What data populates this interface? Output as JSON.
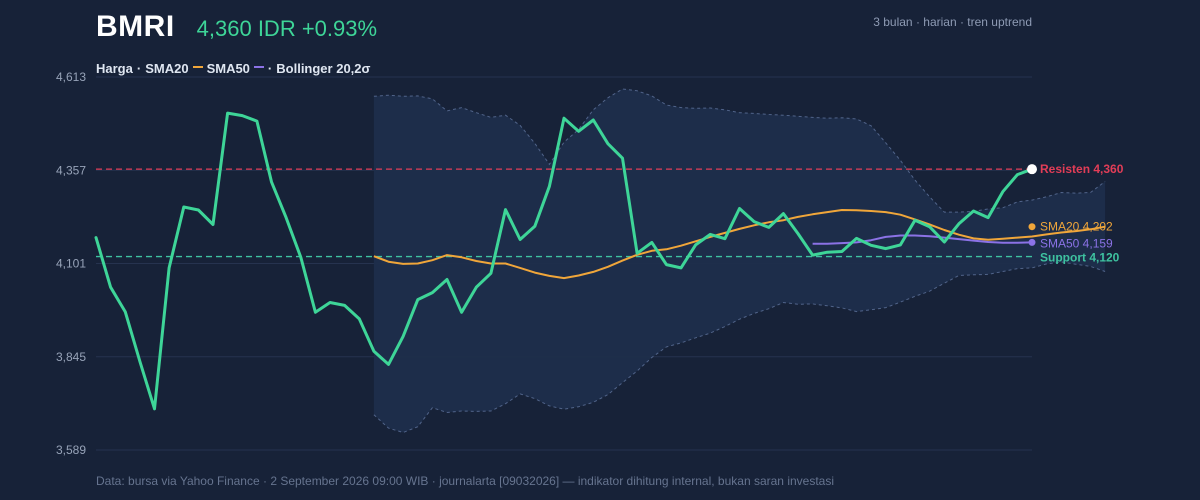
{
  "header": {
    "ticker": "BMRI",
    "price_change": "4,360 IDR +0.93%",
    "subtitle": "3 bulan · harian · tren uptrend"
  },
  "legend": {
    "price": "Harga",
    "sep1": "·",
    "sma20": "SMA20",
    "sma50": "SMA50",
    "sep2": "·",
    "bollinger": "Bollinger 20,2σ"
  },
  "footer": "Data: bursa via Yahoo Finance · 2 September 2026 09:00 WIB · journalarta [09032026] — indikator dihitung internal, bukan saran investasi",
  "colors": {
    "background": "#172238",
    "price": "#3ed598",
    "sma20": "#f0a63a",
    "sma50": "#8b72e6",
    "band_fill": "#1e2e4b",
    "band_edge": "#51648a",
    "resistance": "#e23d57",
    "support": "#3ec2a0",
    "grid": "#26334f"
  },
  "chart_data": {
    "type": "line",
    "title": "BMRI",
    "xlabel": "",
    "ylabel": "",
    "ylim": [
      3589,
      4613
    ],
    "y_ticks": [
      "4,613",
      "4,357",
      "4,101",
      "3,845",
      "3,589"
    ],
    "y_tick_values": [
      4613,
      4357,
      4101,
      3845,
      3589
    ],
    "n_points": 65,
    "series": [
      {
        "name": "Harga",
        "start_index": 0,
        "values": [
          4172,
          4036,
          3968,
          3832,
          3702,
          4089,
          4256,
          4248,
          4208,
          4514,
          4507,
          4492,
          4325,
          4227,
          4118,
          3967,
          3994,
          3986,
          3949,
          3860,
          3824,
          3901,
          4002,
          4021,
          4057,
          3967,
          4036,
          4074,
          4249,
          4167,
          4203,
          4313,
          4500,
          4464,
          4495,
          4430,
          4390,
          4129,
          4159,
          4098,
          4089,
          4152,
          4181,
          4169,
          4252,
          4216,
          4200,
          4238,
          4183,
          4124,
          4132,
          4134,
          4170,
          4151,
          4142,
          4152,
          4220,
          4202,
          4160,
          4210,
          4245,
          4227,
          4298,
          4345,
          4360
        ]
      },
      {
        "name": "SMA20",
        "start_index": 19,
        "values": [
          4121,
          4106,
          4100,
          4101,
          4110,
          4124,
          4118,
          4108,
          4101,
          4101,
          4089,
          4076,
          4067,
          4061,
          4068,
          4078,
          4092,
          4109,
          4125,
          4136,
          4140,
          4150,
          4162,
          4174,
          4185,
          4196,
          4206,
          4214,
          4220,
          4229,
          4236,
          4242,
          4248,
          4247,
          4245,
          4242,
          4235,
          4222,
          4208,
          4193,
          4180,
          4170,
          4166,
          4169,
          4172,
          4175,
          4181,
          4186,
          4190,
          4195,
          4202
        ]
      },
      {
        "name": "SMA50",
        "start_index": 49,
        "values": [
          4155,
          4155,
          4157,
          4159,
          4165,
          4174,
          4178,
          4178,
          4176,
          4172,
          4168,
          4164,
          4160,
          4158,
          4158,
          4159
        ]
      }
    ],
    "bollinger": {
      "name": "Bollinger 20,2σ",
      "start_index": 19,
      "upper": [
        4560,
        4563,
        4560,
        4561,
        4553,
        4520,
        4529,
        4515,
        4502,
        4508,
        4480,
        4431,
        4373,
        4434,
        4469,
        4523,
        4556,
        4580,
        4575,
        4561,
        4536,
        4529,
        4527,
        4528,
        4523,
        4515,
        4513,
        4510,
        4508,
        4505,
        4502,
        4500,
        4501,
        4498,
        4479,
        4432,
        4384,
        4330,
        4284,
        4242,
        4242,
        4244,
        4251,
        4254,
        4270,
        4275,
        4284,
        4296,
        4294,
        4296,
        4326
      ],
      "lower": [
        3686,
        3649,
        3637,
        3653,
        3705,
        3692,
        3696,
        3695,
        3696,
        3716,
        3743,
        3730,
        3710,
        3701,
        3708,
        3720,
        3741,
        3774,
        3806,
        3843,
        3872,
        3883,
        3897,
        3910,
        3928,
        3948,
        3964,
        3977,
        3994,
        3989,
        3990,
        3985,
        3979,
        3969,
        3974,
        3980,
        3995,
        4011,
        4025,
        4047,
        4068,
        4070,
        4071,
        4079,
        4087,
        4089,
        4100,
        4105,
        4099,
        4093,
        4079
      ]
    },
    "reference_lines": [
      {
        "name": "Resisten",
        "value": 4360,
        "label": "Resisten 4,360"
      },
      {
        "name": "Support",
        "value": 4120,
        "label": "Support 4,120"
      }
    ],
    "end_labels": {
      "sma20": "SMA20 4,202",
      "sma50": "SMA50 4,159"
    },
    "grid": true
  }
}
